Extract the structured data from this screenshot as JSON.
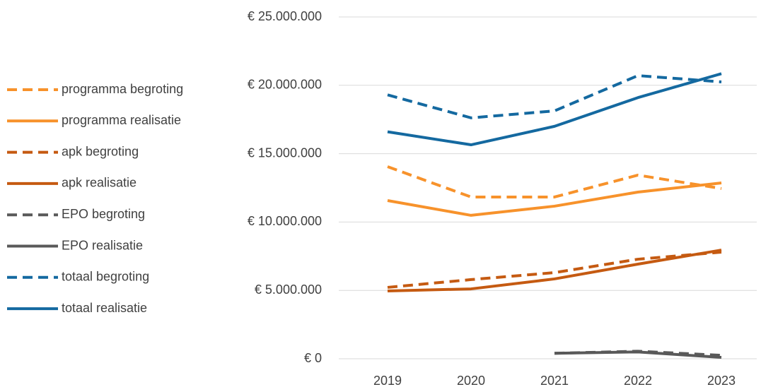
{
  "chart_data": {
    "type": "line",
    "categories": [
      "2019",
      "2020",
      "2021",
      "2022",
      "2023"
    ],
    "series": [
      {
        "name": "programma begroting",
        "color": "#f7922b",
        "dashed": true,
        "values": [
          14050000,
          11830000,
          11830000,
          13430000,
          12450000
        ]
      },
      {
        "name": "programma realisatie",
        "color": "#f7922b",
        "dashed": false,
        "values": [
          11570000,
          10490000,
          11160000,
          12190000,
          12860000
        ]
      },
      {
        "name": "apk begroting",
        "color": "#c55a11",
        "dashed": true,
        "values": [
          5220000,
          5790000,
          6300000,
          7280000,
          7800000
        ]
      },
      {
        "name": "apk realisatie",
        "color": "#c55a11",
        "dashed": false,
        "values": [
          4960000,
          5110000,
          5840000,
          6920000,
          7950000
        ]
      },
      {
        "name": "EPO begroting",
        "color": "#595959",
        "dashed": true,
        "values": [
          null,
          null,
          400000,
          550000,
          250000
        ]
      },
      {
        "name": "EPO realisatie",
        "color": "#595959",
        "dashed": false,
        "values": [
          null,
          null,
          400000,
          500000,
          100000
        ]
      },
      {
        "name": "totaal begroting",
        "color": "#1469a0",
        "dashed": true,
        "values": [
          19300000,
          17620000,
          18130000,
          20710000,
          20250000
        ]
      },
      {
        "name": "totaal realisatie",
        "color": "#1469a0",
        "dashed": false,
        "values": [
          16600000,
          15650000,
          17000000,
          19100000,
          20850000
        ]
      }
    ],
    "ylim": [
      0,
      25000000
    ],
    "yticks": [
      {
        "value": 0,
        "label": "€ 0"
      },
      {
        "value": 5000000,
        "label": "€ 5.000.000"
      },
      {
        "value": 10000000,
        "label": "€ 10.000.000"
      },
      {
        "value": 15000000,
        "label": "€ 15.000.000"
      },
      {
        "value": 20000000,
        "label": "€ 20.000.000"
      },
      {
        "value": 25000000,
        "label": "€ 25.000.000"
      }
    ],
    "grid": true,
    "legend": "left"
  }
}
